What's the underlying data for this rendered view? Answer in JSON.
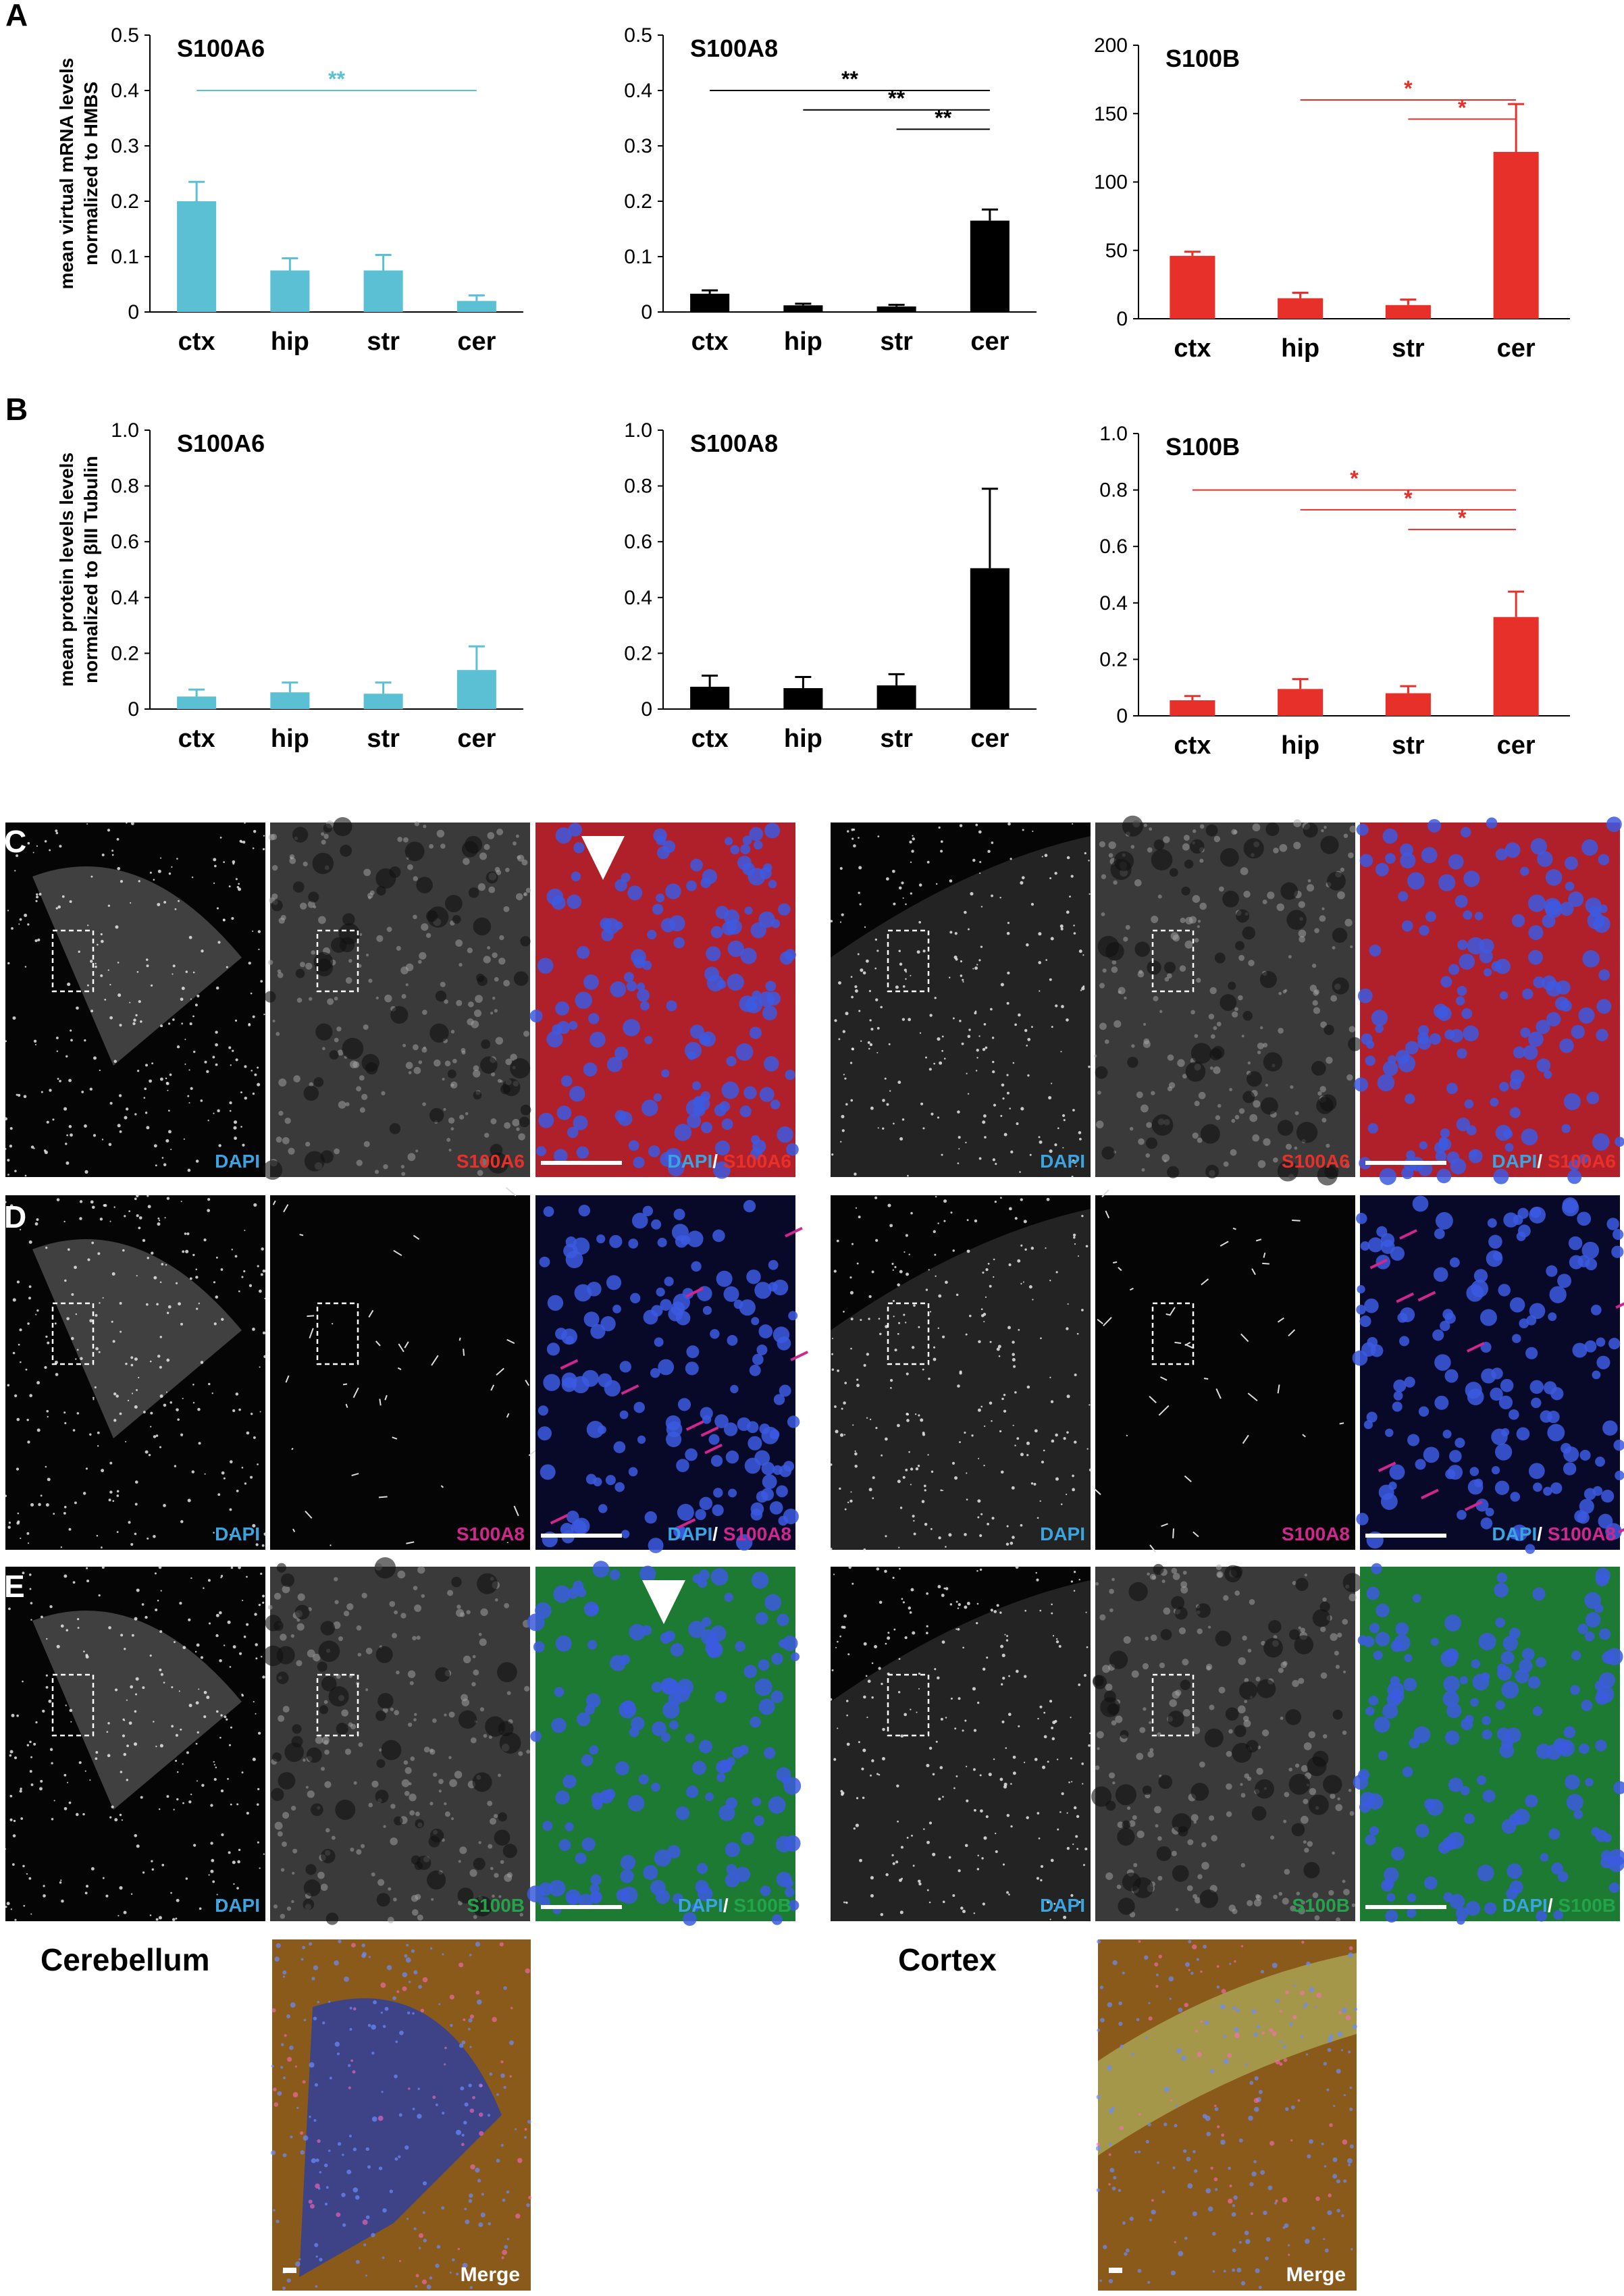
{
  "panel_letters": [
    "A",
    "B",
    "C",
    "D",
    "E"
  ],
  "colors": {
    "cyan": "#5BC0D4",
    "black": "#000000",
    "red": "#E8302A",
    "dapi": "#3BA3E0",
    "s100a8": "#D0268E",
    "s100b": "#22A44A",
    "image_bg": "#000000"
  },
  "chart_data": [
    {
      "type": "bar",
      "row": "A",
      "title": "S100A6",
      "ylabel": "mean virtual mRNA levels\nnormalized to HMBS",
      "categories": [
        "ctx",
        "hip",
        "str",
        "cer"
      ],
      "values": [
        0.2,
        0.075,
        0.075,
        0.02
      ],
      "errors": [
        0.035,
        0.022,
        0.028,
        0.01
      ],
      "ylim": [
        0,
        0.5
      ],
      "yticks": [
        "0",
        "0.1",
        "0.2",
        "0.3",
        "0.4",
        "0.5"
      ],
      "color": "cyan",
      "significance": [
        {
          "from": 0,
          "to": 3,
          "label": "**"
        }
      ]
    },
    {
      "type": "bar",
      "row": "A",
      "title": "S100A8",
      "ylabel": "",
      "categories": [
        "ctx",
        "hip",
        "str",
        "cer"
      ],
      "values": [
        0.033,
        0.012,
        0.01,
        0.165
      ],
      "errors": [
        0.006,
        0.003,
        0.003,
        0.02
      ],
      "ylim": [
        0,
        0.5
      ],
      "yticks": [
        "0",
        "0.1",
        "0.2",
        "0.3",
        "0.4",
        "0.5"
      ],
      "color": "black",
      "significance": [
        {
          "from": 0,
          "to": 3,
          "label": "**"
        },
        {
          "from": 1,
          "to": 3,
          "label": "**"
        },
        {
          "from": 2,
          "to": 3,
          "label": "**"
        }
      ]
    },
    {
      "type": "bar",
      "row": "A",
      "title": "S100B",
      "ylabel": "",
      "categories": [
        "ctx",
        "hip",
        "str",
        "cer"
      ],
      "values": [
        46,
        15,
        10,
        122
      ],
      "errors": [
        3,
        4,
        4,
        35
      ],
      "ylim": [
        0,
        200
      ],
      "yticks": [
        "0",
        "50",
        "100",
        "150",
        "200"
      ],
      "color": "red",
      "significance": [
        {
          "from": 1,
          "to": 3,
          "label": "*"
        },
        {
          "from": 2,
          "to": 3,
          "label": "*"
        }
      ]
    },
    {
      "type": "bar",
      "row": "B",
      "title": "S100A6",
      "ylabel": "mean protein levels levels\nnormalized to βIII Tubulin",
      "categories": [
        "ctx",
        "hip",
        "str",
        "cer"
      ],
      "values": [
        0.045,
        0.06,
        0.055,
        0.14
      ],
      "errors": [
        0.025,
        0.035,
        0.04,
        0.085
      ],
      "ylim": [
        0,
        1.0
      ],
      "yticks": [
        "0",
        "0.2",
        "0.4",
        "0.6",
        "0.8",
        "1.0"
      ],
      "color": "cyan",
      "significance": []
    },
    {
      "type": "bar",
      "row": "B",
      "title": "S100A8",
      "ylabel": "",
      "categories": [
        "ctx",
        "hip",
        "str",
        "cer"
      ],
      "values": [
        0.08,
        0.075,
        0.085,
        0.505
      ],
      "errors": [
        0.04,
        0.04,
        0.04,
        0.285
      ],
      "ylim": [
        0,
        1.0
      ],
      "yticks": [
        "0",
        "0.2",
        "0.4",
        "0.6",
        "0.8",
        "1.0"
      ],
      "color": "black",
      "significance": []
    },
    {
      "type": "bar",
      "row": "B",
      "title": "S100B",
      "ylabel": "",
      "categories": [
        "ctx",
        "hip",
        "str",
        "cer"
      ],
      "values": [
        0.055,
        0.095,
        0.08,
        0.35
      ],
      "errors": [
        0.015,
        0.035,
        0.025,
        0.09
      ],
      "ylim": [
        0,
        1.0
      ],
      "yticks": [
        "0",
        "0.2",
        "0.4",
        "0.6",
        "0.8",
        "1.0"
      ],
      "color": "red",
      "significance": [
        {
          "from": 0,
          "to": 3,
          "label": "*"
        },
        {
          "from": 1,
          "to": 3,
          "label": "*"
        },
        {
          "from": 2,
          "to": 3,
          "label": "*"
        }
      ]
    }
  ],
  "micrographs": {
    "rows": [
      {
        "letter": "C",
        "marker": "S100A6",
        "marker_color": "red",
        "arrowhead": true
      },
      {
        "letter": "D",
        "marker": "S100A8",
        "marker_color": "s100a8",
        "arrowhead": false
      },
      {
        "letter": "E",
        "marker": "S100B",
        "marker_color": "s100b",
        "arrowhead": true
      }
    ],
    "dapi_label": "DAPI",
    "separator": "/ ",
    "region_labels": [
      "Cerebellum",
      "Cortex"
    ],
    "merge_label": "Merge"
  }
}
